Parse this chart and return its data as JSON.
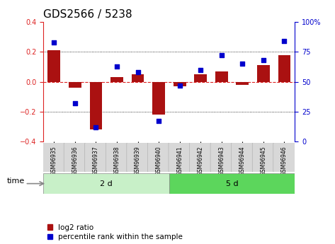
{
  "title": "GDS2566 / 5238",
  "samples": [
    "GSM96935",
    "GSM96936",
    "GSM96937",
    "GSM96938",
    "GSM96939",
    "GSM96940",
    "GSM96941",
    "GSM96942",
    "GSM96943",
    "GSM96944",
    "GSM96945",
    "GSM96946"
  ],
  "log2_ratio": [
    0.21,
    -0.04,
    -0.32,
    0.03,
    0.05,
    -0.22,
    -0.03,
    0.05,
    0.07,
    -0.02,
    0.11,
    0.18
  ],
  "percentile_rank": [
    83,
    32,
    12,
    63,
    58,
    17,
    47,
    60,
    72,
    65,
    68,
    84
  ],
  "groups": [
    {
      "label": "2 d",
      "start": 0,
      "end": 6
    },
    {
      "label": "5 d",
      "start": 6,
      "end": 12
    }
  ],
  "group_colors": [
    "#c8f0c8",
    "#5cd65c"
  ],
  "ylim_left": [
    -0.4,
    0.4
  ],
  "ylim_right": [
    0,
    100
  ],
  "yticks_left": [
    -0.4,
    -0.2,
    0.0,
    0.2,
    0.4
  ],
  "yticks_right": [
    0,
    25,
    50,
    75,
    100
  ],
  "ytick_labels_right": [
    "0",
    "25",
    "50",
    "75",
    "100%"
  ],
  "bar_color": "#aa1111",
  "dot_color": "#0000cc",
  "zero_line_color": "#dd2222",
  "legend_labels": [
    "log2 ratio",
    "percentile rank within the sample"
  ],
  "time_label": "time",
  "title_fontsize": 11,
  "tick_fontsize": 7,
  "label_fontsize": 8
}
